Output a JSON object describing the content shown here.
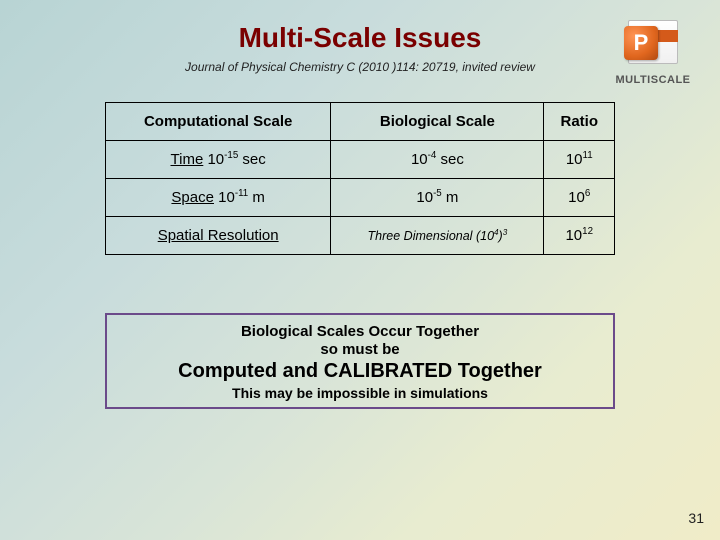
{
  "title": "Multi-Scale Issues",
  "citation": "Journal of Physical Chemistry C (2010 )114: 20719, invited review",
  "logo": {
    "letter": "P",
    "label": "MULTISCALE"
  },
  "table": {
    "headers": [
      "Computational Scale",
      "Biological Scale",
      "Ratio"
    ],
    "rows": [
      {
        "label": "Time",
        "comp_base": "10",
        "comp_exp": "-15",
        "comp_unit": "sec",
        "bio_base": "10",
        "bio_exp": "-4",
        "bio_unit": "sec",
        "ratio_base": "10",
        "ratio_exp": "11"
      },
      {
        "label": "Space",
        "comp_base": "10",
        "comp_exp": "-11",
        "comp_unit": "m",
        "bio_base": "10",
        "bio_exp": "-5",
        "bio_unit": "m",
        "ratio_base": "10",
        "ratio_exp": "6"
      },
      {
        "label": "Spatial Resolution",
        "bio_text": "Three Dimensional",
        "bio_paren_base": "10",
        "bio_paren_exp": "4",
        "bio_outer_exp": "3",
        "ratio_base": "10",
        "ratio_exp": "12"
      }
    ]
  },
  "callout": {
    "line1": "Biological Scales Occur Together",
    "line2": "so must be",
    "line3": "Computed and CALIBRATED Together",
    "line4": "This may be impossible in simulations"
  },
  "page_number": "31",
  "colors": {
    "title": "#7a0000",
    "callout_border": "#6b4a8a",
    "ppt_orange": "#e0661e"
  }
}
